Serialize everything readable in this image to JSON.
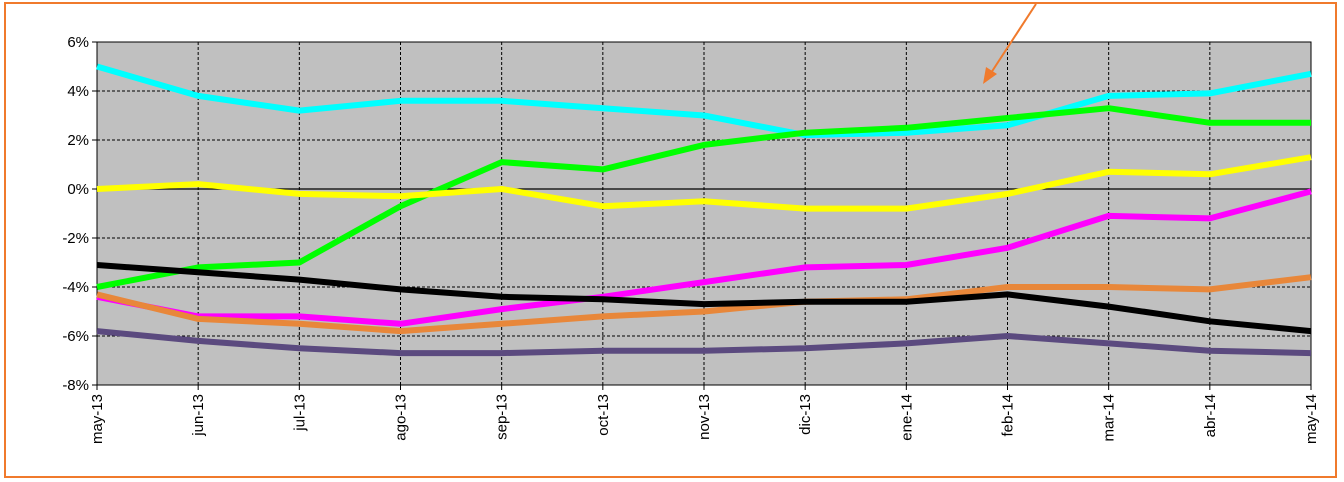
{
  "chart_data": {
    "type": "line",
    "title": "",
    "xlabel": "",
    "ylabel": "",
    "categories": [
      "may-13",
      "jun-13",
      "jul-13",
      "ago-13",
      "sep-13",
      "oct-13",
      "nov-13",
      "dic-13",
      "ene-14",
      "feb-14",
      "mar-14",
      "abr-14",
      "may-14"
    ],
    "y_ticks": [
      "6%",
      "4%",
      "2%",
      "0%",
      "-2%",
      "-4%",
      "-6%",
      "-8%"
    ],
    "ylim": [
      -8,
      6
    ],
    "y_unit": "%",
    "grid": true,
    "legend": "none",
    "plot_background": "#c0c0c0",
    "frame_color": "#f07a2c",
    "arrow_color": "#f07a2c",
    "series": [
      {
        "color": "#00ffff",
        "values": [
          5.0,
          3.8,
          3.2,
          3.6,
          3.6,
          3.3,
          3.0,
          2.2,
          2.3,
          2.6,
          3.8,
          3.9,
          4.7
        ]
      },
      {
        "color": "#00ff00",
        "values": [
          -4.0,
          -3.2,
          -3.0,
          -0.7,
          1.1,
          0.8,
          1.8,
          2.3,
          2.5,
          2.9,
          3.3,
          2.7,
          2.7
        ]
      },
      {
        "color": "#ffff00",
        "values": [
          0.0,
          0.2,
          -0.2,
          -0.3,
          0.0,
          -0.7,
          -0.5,
          -0.8,
          -0.8,
          -0.2,
          0.7,
          0.6,
          1.3
        ]
      },
      {
        "color": "#ff00ff",
        "values": [
          -4.4,
          -5.2,
          -5.2,
          -5.5,
          -4.9,
          -4.4,
          -3.8,
          -3.2,
          -3.1,
          -2.4,
          -1.1,
          -1.2,
          -0.1
        ]
      },
      {
        "color": "#e8873a",
        "values": [
          -4.3,
          -5.3,
          -5.5,
          -5.8,
          -5.5,
          -5.2,
          -5.0,
          -4.6,
          -4.5,
          -4.0,
          -4.0,
          -4.1,
          -3.6
        ]
      },
      {
        "color": "#000000",
        "values": [
          -3.1,
          -3.4,
          -3.7,
          -4.1,
          -4.4,
          -4.5,
          -4.7,
          -4.6,
          -4.6,
          -4.3,
          -4.8,
          -5.4,
          -5.8
        ]
      },
      {
        "color": "#5b4a7f",
        "values": [
          -5.8,
          -6.2,
          -6.5,
          -6.7,
          -6.7,
          -6.6,
          -6.6,
          -6.5,
          -6.3,
          -6.0,
          -6.3,
          -6.6,
          -6.7
        ]
      }
    ]
  }
}
